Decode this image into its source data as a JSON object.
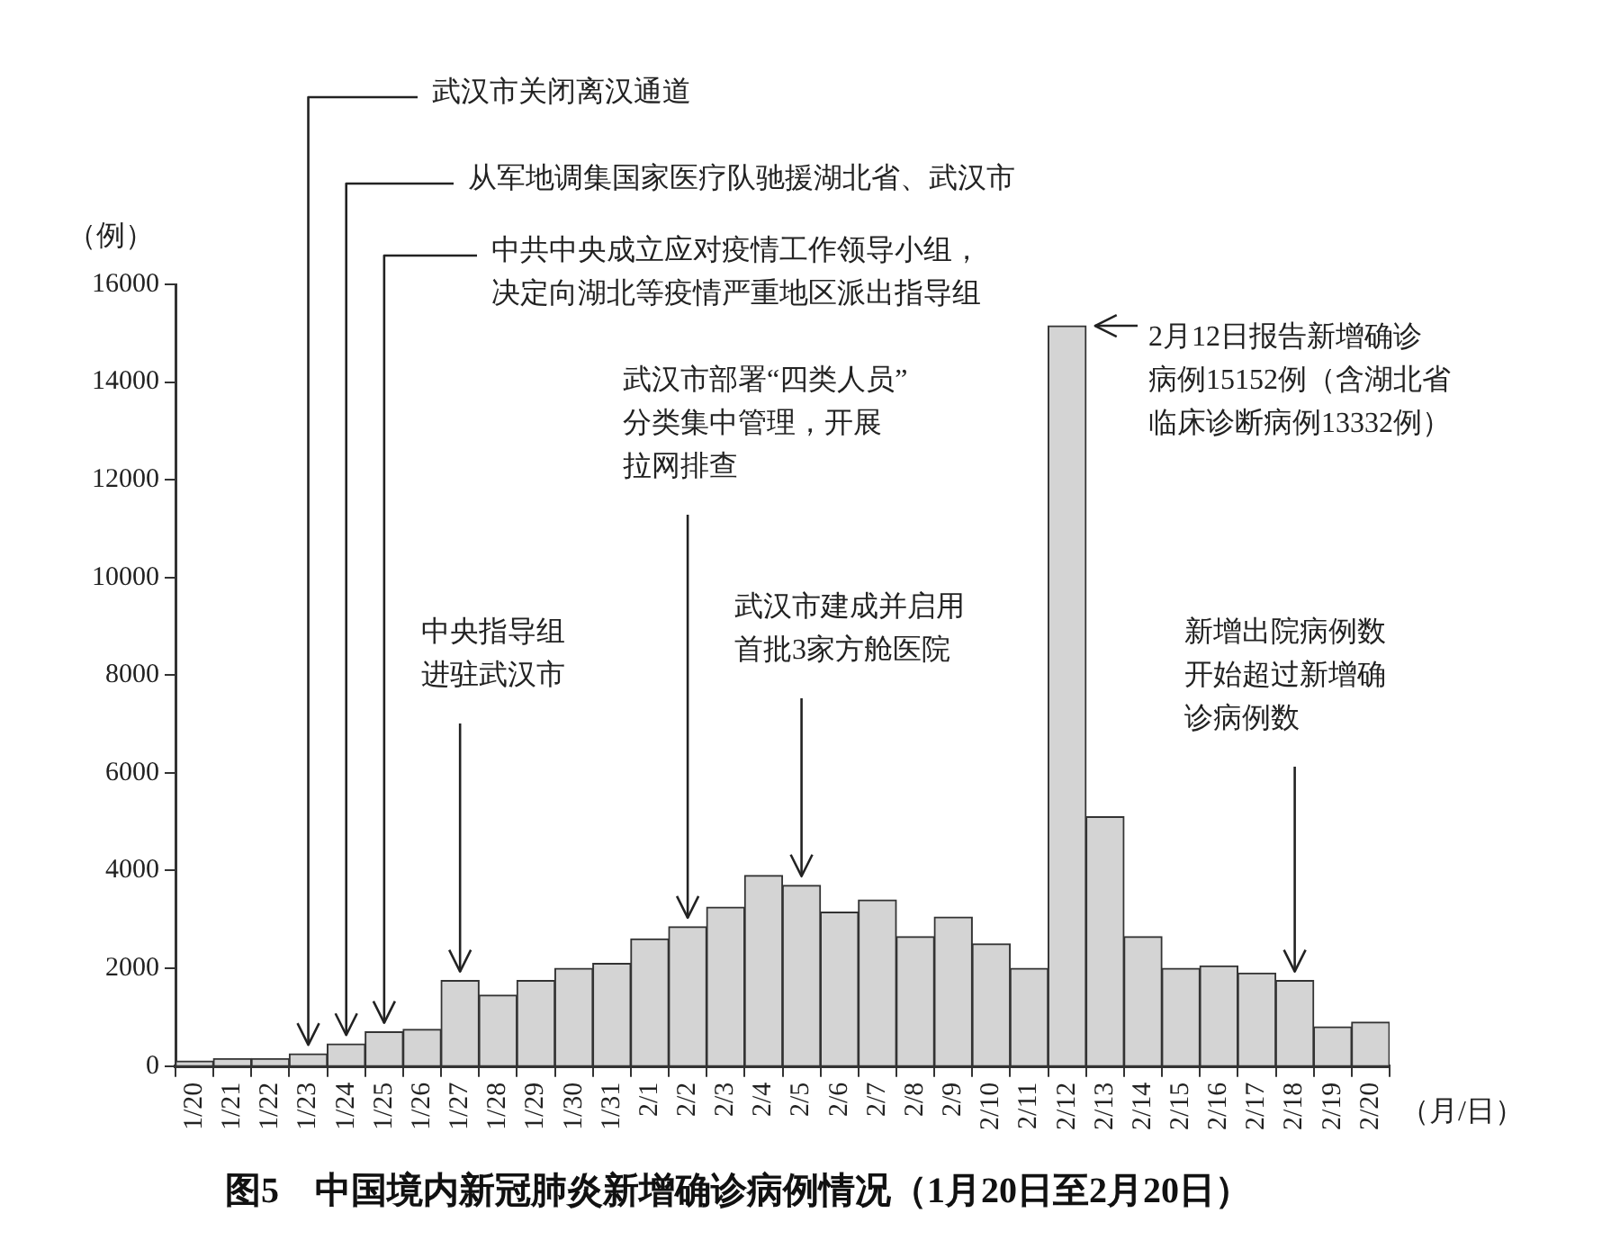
{
  "chart_data": {
    "type": "bar",
    "title": "图5　中国境内新冠肺炎新增确诊病例情况（1月20日至2月20日）",
    "xlabel": "（月/日）",
    "ylabel": "（例）",
    "categories": [
      "1/20",
      "1/21",
      "1/22",
      "1/23",
      "1/24",
      "1/25",
      "1/26",
      "1/27",
      "1/28",
      "1/29",
      "1/30",
      "1/31",
      "2/1",
      "2/2",
      "2/3",
      "2/4",
      "2/5",
      "2/6",
      "2/7",
      "2/8",
      "2/9",
      "2/10",
      "2/11",
      "2/12",
      "2/13",
      "2/14",
      "2/15",
      "2/16",
      "2/17",
      "2/18",
      "2/19",
      "2/20"
    ],
    "values": [
      100,
      150,
      150,
      250,
      450,
      700,
      750,
      1750,
      1450,
      1750,
      2000,
      2100,
      2600,
      2850,
      3250,
      3900,
      3700,
      3150,
      3400,
      2650,
      3050,
      2500,
      2000,
      15152,
      5100,
      2650,
      2000,
      2050,
      1900,
      1750,
      800,
      900
    ],
    "color": "#d4d4d4",
    "ylim": [
      0,
      16000
    ],
    "yticks": [
      0,
      2000,
      4000,
      6000,
      8000,
      10000,
      12000,
      14000,
      16000
    ],
    "grid": false,
    "legend": false,
    "annotations": [
      {
        "text": "武汉市关闭离汉通道",
        "x": "1/23",
        "y": 250
      },
      {
        "text": "从军地调集国家医疗队驰援湖北省、武汉市",
        "x": "1/24",
        "y": 450
      },
      {
        "text": "中共中央成立应对疫情工作领导小组，决定向湖北等疫情严重地区派出指导组",
        "x": "1/25",
        "y": 700
      },
      {
        "text": "中央指导组进驻武汉市",
        "x": "1/27",
        "y": 1750
      },
      {
        "text": "武汉市部署“四类人员”分类集中管理，开展拉网排查",
        "x": "2/2",
        "y": 2850
      },
      {
        "text": "武汉市建成并启用首批3家方舱医院",
        "x": "2/5",
        "y": 3700
      },
      {
        "text": "2月12日报告新增确诊病例15152例（含湖北省临床诊断病例13332例）",
        "x": "2/12",
        "y": 15152
      },
      {
        "text": "新增出院病例数开始超过新增确诊病例数",
        "x": "2/18",
        "y": 1750
      }
    ]
  }
}
